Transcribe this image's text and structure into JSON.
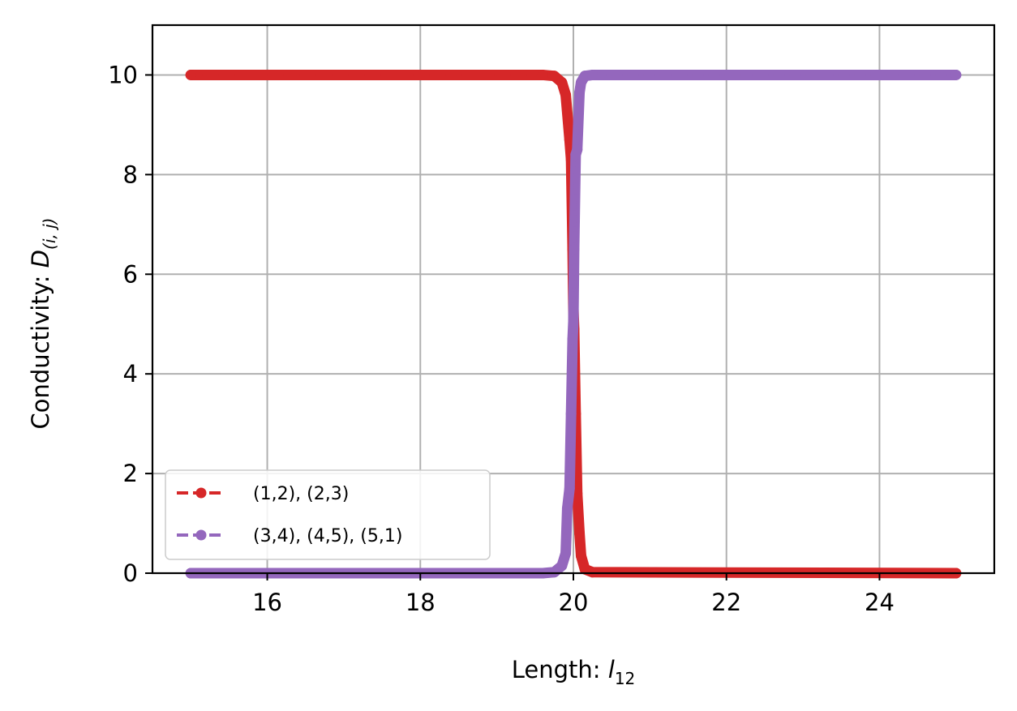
{
  "chart_data": {
    "type": "line",
    "xlabel": "Length: ",
    "xlabel_math": "l",
    "xlabel_sub": "12",
    "ylabel": "Conductivity: ",
    "ylabel_math": "D",
    "ylabel_sub": "(i, j)",
    "xlim": [
      14.5,
      25.5
    ],
    "ylim": [
      0,
      11
    ],
    "xticks": [
      16,
      18,
      20,
      22,
      24
    ],
    "yticks": [
      0,
      2,
      4,
      6,
      8,
      10
    ],
    "grid": true,
    "legend_position": "lower-left",
    "series": [
      {
        "name": "(1,2), (2,3)",
        "color": "#d62728",
        "linestyle": "dashed",
        "marker": "circle",
        "x": [
          15.0,
          19.6,
          19.75,
          19.85,
          19.9,
          19.95,
          19.97,
          19.99,
          20.0,
          20.01,
          20.03,
          20.05,
          20.08,
          20.1,
          20.15,
          20.25,
          25.0
        ],
        "y": [
          10.0,
          10.0,
          9.98,
          9.85,
          9.6,
          8.7,
          8.3,
          6.5,
          5.3,
          4.9,
          3.2,
          1.6,
          0.8,
          0.35,
          0.08,
          0.02,
          0.0
        ]
      },
      {
        "name": "(3,4), (4,5), (5,1)",
        "color": "#9467bd",
        "linestyle": "dashed",
        "marker": "circle",
        "x": [
          15.0,
          19.6,
          19.75,
          19.85,
          19.9,
          19.92,
          19.95,
          19.97,
          19.99,
          20.0,
          20.01,
          20.03,
          20.05,
          20.08,
          20.1,
          20.15,
          20.25,
          25.0
        ],
        "y": [
          0.0,
          0.0,
          0.02,
          0.15,
          0.4,
          1.3,
          1.7,
          3.2,
          4.7,
          5.05,
          6.5,
          8.4,
          8.5,
          9.65,
          9.85,
          9.98,
          10.0,
          10.0
        ]
      }
    ]
  }
}
